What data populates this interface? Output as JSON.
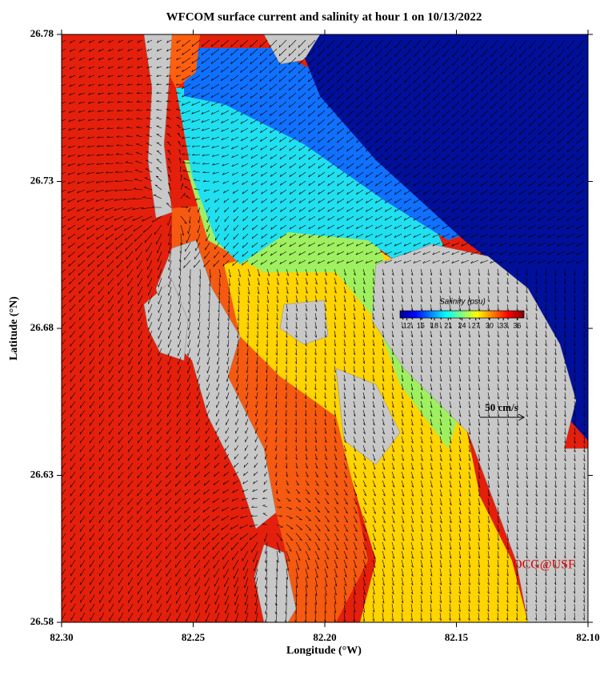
{
  "title": "WFCOM surface current and salinity at hour 1 on 10/13/2022",
  "x_axis": {
    "label": "Longitude (°W)",
    "lim": [
      82.3,
      82.1
    ],
    "ticks": [
      {
        "value": 82.3,
        "label": "82.30"
      },
      {
        "value": 82.25,
        "label": "82.25"
      },
      {
        "value": 82.2,
        "label": "82.20"
      },
      {
        "value": 82.15,
        "label": "82.15"
      },
      {
        "value": 82.1,
        "label": "82.10"
      }
    ]
  },
  "y_axis": {
    "label": "Latitude (°N)",
    "lim": [
      26.58,
      26.78
    ],
    "ticks": [
      26.58,
      26.63,
      26.68,
      26.73,
      26.78
    ]
  },
  "colorbar": {
    "label": "Salinity (psu)",
    "lim": [
      10.5,
      37.5
    ],
    "ticks": [
      12,
      15,
      18,
      21,
      24,
      27,
      30,
      33,
      36
    ]
  },
  "scale_arrow": {
    "label": "50 cm/s"
  },
  "credit": "OCG@USF"
}
